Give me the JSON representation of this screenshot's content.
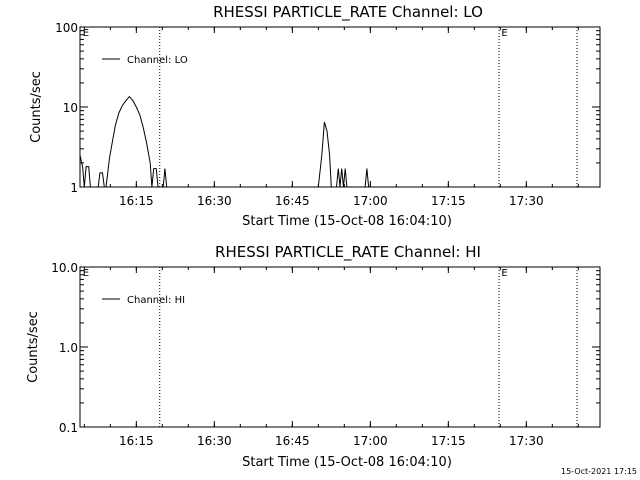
{
  "footer": {
    "timestamp": "15-Oct-2021 17:15"
  },
  "chart_data": [
    {
      "type": "line",
      "title": "RHESSI PARTICLE_RATE Channel: LO",
      "xlabel": "Start Time (15-Oct-08 16:04:10)",
      "ylabel": "Counts/sec",
      "yscale": "log",
      "ylim": [
        1,
        100
      ],
      "xlim": [
        "16:04:10",
        "17:44:10"
      ],
      "x_ticks": [
        "16:15",
        "16:30",
        "16:45",
        "17:00",
        "17:15",
        "17:30"
      ],
      "y_ticks": [
        "1",
        "10",
        "100"
      ],
      "grid": false,
      "legend_position": "top-left",
      "annotations": [
        {
          "text": "E",
          "x": "16:04:30"
        },
        {
          "text": "E",
          "x": "17:25:00"
        }
      ],
      "vertical_lines": [
        "16:19:30",
        "17:24:45",
        "17:39:45"
      ],
      "series": [
        {
          "name": "Channel: LO",
          "color": "#000000",
          "points": [
            [
              "16:04:10",
              2.5
            ],
            [
              "16:04:40",
              1.8
            ],
            [
              "16:05:00",
              1.0
            ],
            [
              "16:05:20",
              1.8
            ],
            [
              "16:05:50",
              1.8
            ],
            [
              "16:06:10",
              1.0
            ],
            [
              "16:07:40",
              1.0
            ],
            [
              "16:08:00",
              1.5
            ],
            [
              "16:08:30",
              1.5
            ],
            [
              "16:08:50",
              1.0
            ],
            [
              "16:09:10",
              1.0
            ],
            [
              "16:09:50",
              2.3
            ],
            [
              "16:10:30",
              4.0
            ],
            [
              "16:11:00",
              6.0
            ],
            [
              "16:11:40",
              8.5
            ],
            [
              "16:12:20",
              10.5
            ],
            [
              "16:13:00",
              12.0
            ],
            [
              "16:13:40",
              13.5
            ],
            [
              "16:14:20",
              12.0
            ],
            [
              "16:15:00",
              10.0
            ],
            [
              "16:15:40",
              8.0
            ],
            [
              "16:16:20",
              5.5
            ],
            [
              "16:17:00",
              3.5
            ],
            [
              "16:17:40",
              2.0
            ],
            [
              "16:18:00",
              1.0
            ],
            [
              "16:18:20",
              1.7
            ],
            [
              "16:18:50",
              1.7
            ],
            [
              "16:19:10",
              1.0
            ],
            [
              "16:20:10",
              1.0
            ],
            [
              "16:20:30",
              1.7
            ],
            [
              "16:20:50",
              1.0
            ],
            [
              "16:50:00",
              1.0
            ],
            [
              "16:50:40",
              2.5
            ],
            [
              "16:51:10",
              6.5
            ],
            [
              "16:51:40",
              5.0
            ],
            [
              "16:52:10",
              2.5
            ],
            [
              "16:52:30",
              1.0
            ],
            [
              "16:53:30",
              1.0
            ],
            [
              "16:53:50",
              1.7
            ],
            [
              "16:54:10",
              1.0
            ],
            [
              "16:54:30",
              1.7
            ],
            [
              "16:54:50",
              1.0
            ],
            [
              "16:55:10",
              1.7
            ],
            [
              "16:55:30",
              1.0
            ],
            [
              "16:59:00",
              1.0
            ],
            [
              "16:59:20",
              1.7
            ],
            [
              "16:59:40",
              1.0
            ],
            [
              "17:44:10",
              1.0
            ]
          ]
        }
      ]
    },
    {
      "type": "line",
      "title": "RHESSI PARTICLE_RATE Channel: HI",
      "xlabel": "Start Time (15-Oct-08 16:04:10)",
      "ylabel": "Counts/sec",
      "yscale": "log",
      "ylim": [
        0.1,
        10
      ],
      "xlim": [
        "16:04:10",
        "17:44:10"
      ],
      "x_ticks": [
        "16:15",
        "16:30",
        "16:45",
        "17:00",
        "17:15",
        "17:30"
      ],
      "y_ticks": [
        "0.1",
        "1.0",
        "10.0"
      ],
      "grid": false,
      "legend_position": "top-left",
      "annotations": [
        {
          "text": "E",
          "x": "16:04:30"
        },
        {
          "text": "E",
          "x": "17:25:00"
        }
      ],
      "vertical_lines": [
        "16:19:30",
        "17:24:45",
        "17:39:45"
      ],
      "series": [
        {
          "name": "Channel: HI",
          "color": "#000000",
          "points": []
        }
      ]
    }
  ]
}
